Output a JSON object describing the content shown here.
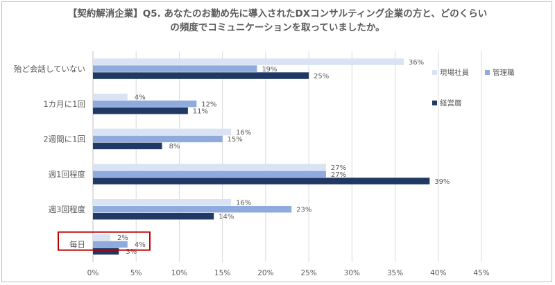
{
  "title": {
    "line1": "【契約解消企業】Q5. あなたのお勤め先に導入されたDXコンサルティング企業の方と、どのくらい",
    "line2": "の頻度でコミュニケーションを取っていましたか。"
  },
  "chart_data": {
    "type": "bar",
    "orientation": "horizontal",
    "categories": [
      "殆ど会話していない",
      "1カ月に1回",
      "2週間に1回",
      "週1回程度",
      "週3回程度",
      "毎日"
    ],
    "series": [
      {
        "name": "現場社員",
        "color": "#dae3f3",
        "values": [
          36,
          4,
          16,
          27,
          16,
          2
        ]
      },
      {
        "name": "管理職",
        "color": "#8faadc",
        "values": [
          19,
          12,
          15,
          27,
          23,
          4
        ]
      },
      {
        "name": "経営層",
        "color": "#203864",
        "values": [
          25,
          11,
          8,
          39,
          14,
          3
        ]
      }
    ],
    "value_suffix": "%",
    "xlim": [
      0,
      45
    ],
    "xticks": [
      "0%",
      "5%",
      "10%",
      "15%",
      "20%",
      "25%",
      "30%",
      "35%",
      "40%",
      "45%"
    ],
    "grid": true,
    "legend_position": "right",
    "highlighted_category": "毎日",
    "highlight_color": "#c00000"
  }
}
